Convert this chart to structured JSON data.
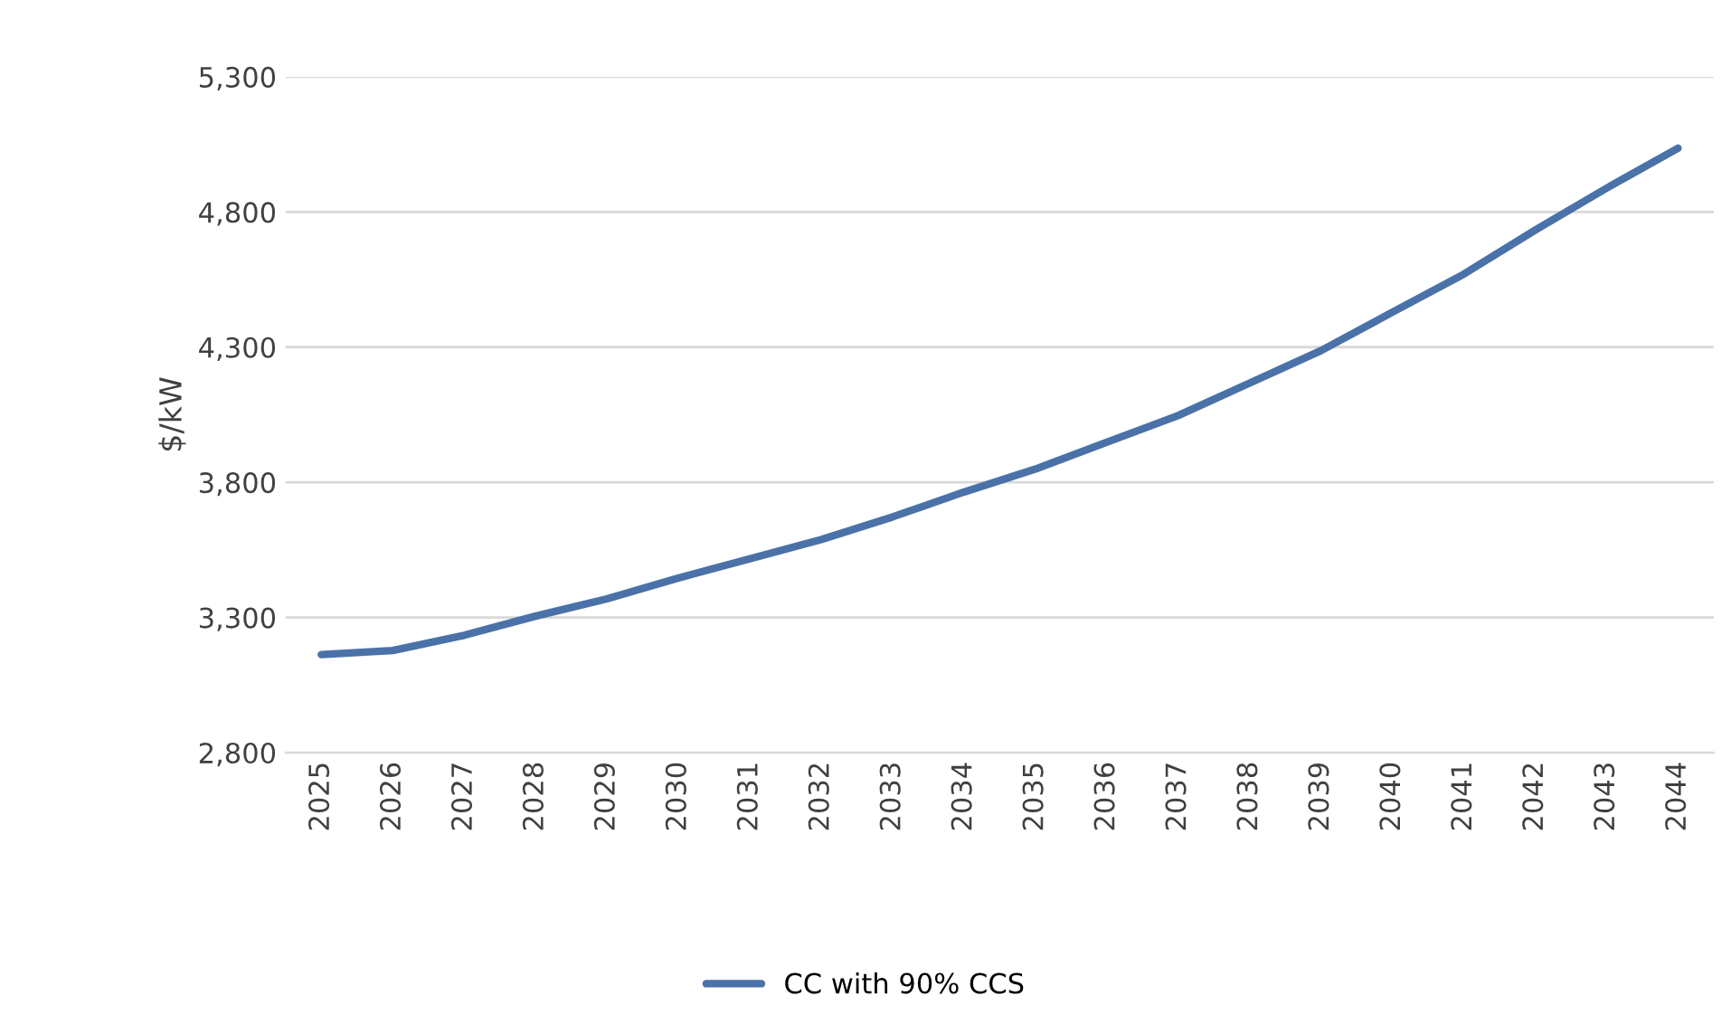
{
  "chart_data": {
    "type": "line",
    "ylabel": "$/kW",
    "categories": [
      "2025",
      "2026",
      "2027",
      "2028",
      "2029",
      "2030",
      "2031",
      "2032",
      "2033",
      "2034",
      "2035",
      "2036",
      "2037",
      "2038",
      "2039",
      "2040",
      "2041",
      "2042",
      "2043",
      "2044"
    ],
    "series": [
      {
        "name": "CC with 90% CCS",
        "color": "#4a72a8",
        "values": [
          3163,
          3178,
          3234,
          3305,
          3369,
          3446,
          3517,
          3588,
          3672,
          3764,
          3849,
          3948,
          4047,
          4167,
          4287,
          4429,
          4570,
          4733,
          4888,
          5036
        ]
      }
    ],
    "ylim": [
      2800,
      5300
    ],
    "yticks": [
      {
        "value": 2800,
        "label": "2,800"
      },
      {
        "value": 3300,
        "label": "3,300"
      },
      {
        "value": 3800,
        "label": "3,800"
      },
      {
        "value": 4300,
        "label": "4,300"
      },
      {
        "value": 4800,
        "label": "4,800"
      },
      {
        "value": 5300,
        "label": "5,300"
      }
    ],
    "grid": "y",
    "legend": "bottom",
    "marker": "none",
    "line_style": "solid"
  }
}
